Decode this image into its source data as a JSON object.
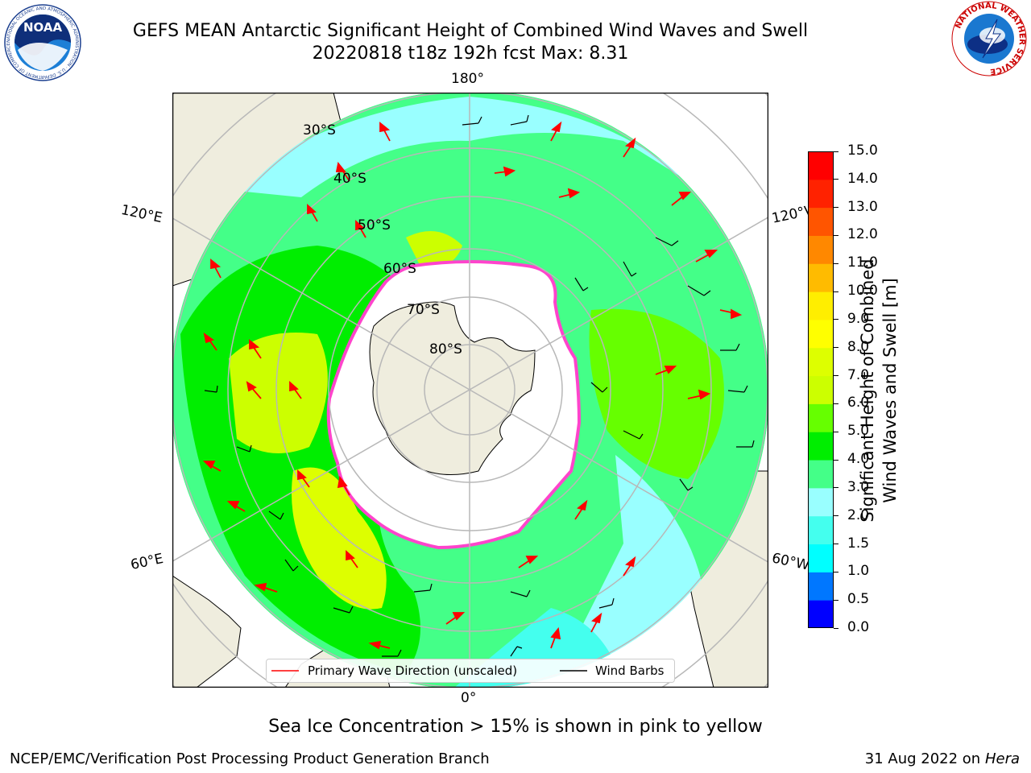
{
  "title": {
    "line1": "GEFS MEAN Antarctic Significant Height of Combined Wind Waves and Swell",
    "line2": "20220818 t18z 192h fcst   Max: 8.31"
  },
  "logos": {
    "noaa": {
      "text": "NOAA",
      "ring_text": "NATIONAL OCEANIC AND ATMOSPHERIC ADMINISTRATION · U.S. DEPARTMENT OF COMMERCE"
    },
    "nws": {
      "ring_text": "NATIONAL WEATHER SERVICE"
    }
  },
  "map": {
    "projection": "south-polar-stereographic",
    "longitude_labels": {
      "top": "180°",
      "bottom": "0°",
      "left_upper": "120°E",
      "left_lower": "60°E",
      "right_upper": "120°W",
      "right_lower": "60°W"
    },
    "latitude_labels": [
      "30°S",
      "40°S",
      "50°S",
      "60°S",
      "70°S",
      "80°S"
    ],
    "colors": {
      "land": "#efedde",
      "ice_edge": "#ff44cc",
      "ice_fill": "#ffffff",
      "grid": "#b8b8b8"
    }
  },
  "colorbar": {
    "label_line1": "Significant Height of Combined",
    "label_line2": "Wind Waves and Swell [m]",
    "ticks": [
      "0.0",
      "0.5",
      "1.0",
      "1.5",
      "2.0",
      "3.0",
      "4.0",
      "5.0",
      "6.0",
      "7.0",
      "8.0",
      "9.0",
      "10.0",
      "11.0",
      "12.0",
      "13.0",
      "14.0",
      "15.0"
    ],
    "colors": [
      "#0000ff",
      "#0077ff",
      "#00ffff",
      "#44ffee",
      "#99ffff",
      "#44ff88",
      "#00ee00",
      "#66ff00",
      "#ccff00",
      "#ddff00",
      "#ffff00",
      "#ffee00",
      "#ffbb00",
      "#ff8800",
      "#ff5500",
      "#ff2200",
      "#ff0000"
    ]
  },
  "legend": {
    "primary_wave": {
      "label": "Primary Wave Direction (unscaled)",
      "color": "#ff0000"
    },
    "wind_barbs": {
      "label": "Wind Barbs",
      "color": "#000000"
    }
  },
  "caption": "Sea Ice Concentration > 15% is shown in pink to yellow",
  "footer": {
    "left": "NCEP/EMC/Verification Post Processing Product Generation Branch",
    "right_date": "31 Aug 2022 on",
    "right_host": "Hera"
  }
}
